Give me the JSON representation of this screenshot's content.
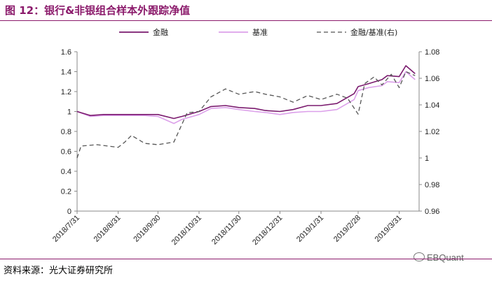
{
  "title": "图 12：银行&非银组合样本外跟踪净值",
  "source": "资料来源：光大证券研究所",
  "watermark": "EBQuant",
  "watermark_icon": "wechat-icon",
  "colors": {
    "jinrong": "#7a1a6e",
    "jizhun": "#dca0ea",
    "ratio": "#555555",
    "accent": "#8b1a6b"
  },
  "chart_data": {
    "type": "line",
    "x_tick_labels": [
      "2018/7/31",
      "2018/8/31",
      "2018/9/30",
      "2018/10/31",
      "2018/11/30",
      "2018/12/31",
      "2019/1/31",
      "2019/2/28",
      "2019/3/31"
    ],
    "x_tick_dates": [
      "2018-07-31",
      "2018-08-31",
      "2018-09-30",
      "2018-10-31",
      "2018-11-30",
      "2018-12-31",
      "2019-01-31",
      "2019-02-28",
      "2019-03-31"
    ],
    "x_range": [
      "2018-07-31",
      "2019-04-15"
    ],
    "y_left": {
      "min": 0,
      "max": 1.6,
      "ticks": [
        0,
        0.2,
        0.4,
        0.6,
        0.8,
        1,
        1.2,
        1.4,
        1.6
      ],
      "tick_labels": [
        "0",
        "0.2",
        "0.4",
        "0.6",
        "0.8",
        "1",
        "1.2",
        "1.4",
        "1.6"
      ]
    },
    "y_right": {
      "min": 0.96,
      "max": 1.08,
      "ticks": [
        0.96,
        0.98,
        1,
        1.02,
        1.04,
        1.06,
        1.08
      ],
      "tick_labels": [
        "0.96",
        "0.98",
        "1",
        "1.02",
        "1.04",
        "1.06",
        "1.08"
      ]
    },
    "legend_position": "top",
    "series": [
      {
        "name": "金融",
        "axis": "left",
        "style": "solid",
        "color": "#7a1a6e",
        "x": [
          "2018-07-31",
          "2018-08-10",
          "2018-08-20",
          "2018-08-31",
          "2018-09-10",
          "2018-09-20",
          "2018-09-30",
          "2018-10-12",
          "2018-10-18",
          "2018-10-31",
          "2018-11-09",
          "2018-11-20",
          "2018-11-30",
          "2018-12-12",
          "2018-12-20",
          "2018-12-31",
          "2019-01-10",
          "2019-01-21",
          "2019-01-31",
          "2019-02-12",
          "2019-02-25",
          "2019-02-28",
          "2019-03-08",
          "2019-03-18",
          "2019-03-22",
          "2019-03-31",
          "2019-04-05",
          "2019-04-12"
        ],
        "y": [
          1.0,
          0.96,
          0.97,
          0.97,
          0.97,
          0.97,
          0.97,
          0.93,
          0.95,
          1.0,
          1.05,
          1.06,
          1.04,
          1.03,
          1.01,
          1.0,
          1.02,
          1.06,
          1.06,
          1.08,
          1.18,
          1.25,
          1.28,
          1.32,
          1.36,
          1.35,
          1.46,
          1.38
        ]
      },
      {
        "name": "基准",
        "axis": "left",
        "style": "solid",
        "color": "#dca0ea",
        "x": [
          "2018-07-31",
          "2018-08-10",
          "2018-08-20",
          "2018-08-31",
          "2018-09-10",
          "2018-09-20",
          "2018-09-30",
          "2018-10-12",
          "2018-10-18",
          "2018-10-31",
          "2018-11-09",
          "2018-11-20",
          "2018-11-30",
          "2018-12-12",
          "2018-12-20",
          "2018-12-31",
          "2019-01-10",
          "2019-01-21",
          "2019-01-31",
          "2019-02-12",
          "2019-02-25",
          "2019-02-28",
          "2019-03-08",
          "2019-03-18",
          "2019-03-22",
          "2019-03-31",
          "2019-04-05",
          "2019-04-12"
        ],
        "y": [
          1.0,
          0.95,
          0.96,
          0.96,
          0.96,
          0.96,
          0.95,
          0.88,
          0.92,
          0.97,
          1.03,
          1.04,
          1.02,
          1.0,
          0.99,
          0.97,
          0.99,
          1.0,
          1.0,
          1.02,
          1.12,
          1.21,
          1.24,
          1.26,
          1.3,
          1.29,
          1.4,
          1.32
        ]
      },
      {
        "name": "金融/基准(右)",
        "axis": "right",
        "style": "dashed",
        "color": "#555555",
        "x": [
          "2018-07-31",
          "2018-08-03",
          "2018-08-15",
          "2018-08-31",
          "2018-09-05",
          "2018-09-10",
          "2018-09-20",
          "2018-09-30",
          "2018-10-12",
          "2018-10-22",
          "2018-10-31",
          "2018-11-09",
          "2018-11-20",
          "2018-11-30",
          "2018-12-12",
          "2018-12-20",
          "2018-12-31",
          "2019-01-10",
          "2019-01-21",
          "2019-01-31",
          "2019-02-12",
          "2019-02-20",
          "2019-02-28",
          "2019-03-05",
          "2019-03-12",
          "2019-03-18",
          "2019-03-25",
          "2019-03-31",
          "2019-04-05",
          "2019-04-12"
        ],
        "y": [
          1.0,
          1.009,
          1.01,
          1.008,
          1.012,
          1.017,
          1.011,
          1.01,
          1.012,
          1.034,
          1.035,
          1.046,
          1.052,
          1.048,
          1.05,
          1.048,
          1.046,
          1.042,
          1.047,
          1.044,
          1.048,
          1.045,
          1.033,
          1.056,
          1.061,
          1.055,
          1.063,
          1.053,
          1.065,
          1.062
        ]
      }
    ]
  }
}
